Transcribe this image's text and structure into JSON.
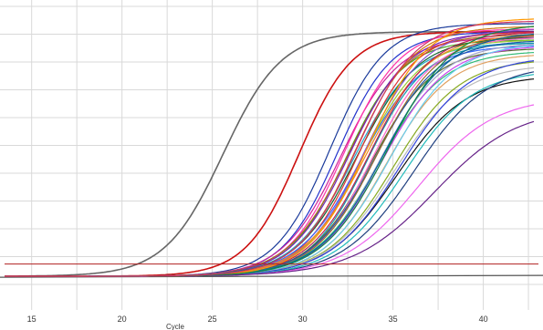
{
  "chart_data": {
    "type": "line",
    "title": "",
    "xlabel": "Cycle",
    "ylabel": "",
    "xlim": [
      13.5,
      42.8
    ],
    "ylim": [
      -0.05,
      1.05
    ],
    "x_ticks": [
      15,
      20,
      25,
      30,
      35,
      40
    ],
    "grid": true,
    "legend": "none",
    "threshold": 0.045,
    "threshold_color": "#b02020",
    "baseline_color": "#555555",
    "series": [
      {
        "color": "#666666",
        "midpoint": 25.6,
        "slope": 0.62,
        "plateau": 0.9
      },
      {
        "color": "#cc1111",
        "midpoint": 29.8,
        "slope": 0.68,
        "plateau": 0.9
      },
      {
        "color": "#1a3a9a",
        "midpoint": 31.5,
        "slope": 0.66,
        "plateau": 0.93
      },
      {
        "color": "#2233cc",
        "midpoint": 31.9,
        "slope": 0.66,
        "plateau": 0.9
      },
      {
        "color": "#cc2299",
        "midpoint": 32.1,
        "slope": 0.62,
        "plateau": 0.88
      },
      {
        "color": "#ff33aa",
        "midpoint": 32.3,
        "slope": 0.64,
        "plateau": 0.91
      },
      {
        "color": "#44aa22",
        "midpoint": 32.4,
        "slope": 0.63,
        "plateau": 0.87
      },
      {
        "color": "#aa6622",
        "midpoint": 32.5,
        "slope": 0.6,
        "plateau": 0.89
      },
      {
        "color": "#7722bb",
        "midpoint": 32.6,
        "slope": 0.61,
        "plateau": 0.9
      },
      {
        "color": "#22aacc",
        "midpoint": 32.8,
        "slope": 0.6,
        "plateau": 0.86
      },
      {
        "color": "#cc7711",
        "midpoint": 32.9,
        "slope": 0.62,
        "plateau": 0.92
      },
      {
        "color": "#116633",
        "midpoint": 33.0,
        "slope": 0.59,
        "plateau": 0.88
      },
      {
        "color": "#dd3333",
        "midpoint": 33.1,
        "slope": 0.63,
        "plateau": 0.9
      },
      {
        "color": "#3366ff",
        "midpoint": 33.2,
        "slope": 0.58,
        "plateau": 0.85
      },
      {
        "color": "#99cc33",
        "midpoint": 33.3,
        "slope": 0.61,
        "plateau": 0.87
      },
      {
        "color": "#8855cc",
        "midpoint": 33.4,
        "slope": 0.6,
        "plateau": 0.91
      },
      {
        "color": "#ee8822",
        "midpoint": 33.5,
        "slope": 0.57,
        "plateau": 0.89
      },
      {
        "color": "#1199aa",
        "midpoint": 33.6,
        "slope": 0.62,
        "plateau": 0.86
      },
      {
        "color": "#bb2255",
        "midpoint": 33.7,
        "slope": 0.59,
        "plateau": 0.9
      },
      {
        "color": "#556b2f",
        "midpoint": 33.8,
        "slope": 0.58,
        "plateau": 0.84
      },
      {
        "color": "#ff66cc",
        "midpoint": 33.9,
        "slope": 0.6,
        "plateau": 0.88
      },
      {
        "color": "#2255aa",
        "midpoint": 34.0,
        "slope": 0.57,
        "plateau": 0.87
      },
      {
        "color": "#9c6b2e",
        "midpoint": 34.1,
        "slope": 0.58,
        "plateau": 0.89
      },
      {
        "color": "#33bb77",
        "midpoint": 34.2,
        "slope": 0.56,
        "plateau": 0.83
      },
      {
        "color": "#a0a0c8",
        "midpoint": 34.3,
        "slope": 0.57,
        "plateau": 0.86
      },
      {
        "color": "#cc44ee",
        "midpoint": 34.4,
        "slope": 0.56,
        "plateau": 0.85
      },
      {
        "color": "#006699",
        "midpoint": 34.5,
        "slope": 0.55,
        "plateau": 0.9
      },
      {
        "color": "#e0a060",
        "midpoint": 34.6,
        "slope": 0.57,
        "plateau": 0.82
      },
      {
        "color": "#111111",
        "midpoint": 35.2,
        "slope": 0.52,
        "plateau": 0.74
      },
      {
        "color": "#66ccee",
        "midpoint": 34.8,
        "slope": 0.55,
        "plateau": 0.86
      },
      {
        "color": "#88aa22",
        "midpoint": 35.0,
        "slope": 0.54,
        "plateau": 0.8
      },
      {
        "color": "#bbbbbb",
        "midpoint": 35.1,
        "slope": 0.53,
        "plateau": 0.78
      },
      {
        "color": "#3344dd",
        "midpoint": 35.4,
        "slope": 0.52,
        "plateau": 0.81
      },
      {
        "color": "#22bbbb",
        "midpoint": 35.6,
        "slope": 0.52,
        "plateau": 0.76
      },
      {
        "color": "#1f3f7f",
        "midpoint": 36.2,
        "slope": 0.5,
        "plateau": 0.78
      },
      {
        "color": "#ee66ee",
        "midpoint": 36.4,
        "slope": 0.48,
        "plateau": 0.66
      },
      {
        "color": "#662288",
        "midpoint": 37.3,
        "slope": 0.44,
        "plateau": 0.62
      },
      {
        "color": "#ff9900",
        "midpoint": 33.6,
        "slope": 0.6,
        "plateau": 0.95
      },
      {
        "color": "#118844",
        "midpoint": 34.7,
        "slope": 0.55,
        "plateau": 0.93
      },
      {
        "color": "#cc3366",
        "midpoint": 33.0,
        "slope": 0.61,
        "plateau": 0.94
      }
    ]
  }
}
